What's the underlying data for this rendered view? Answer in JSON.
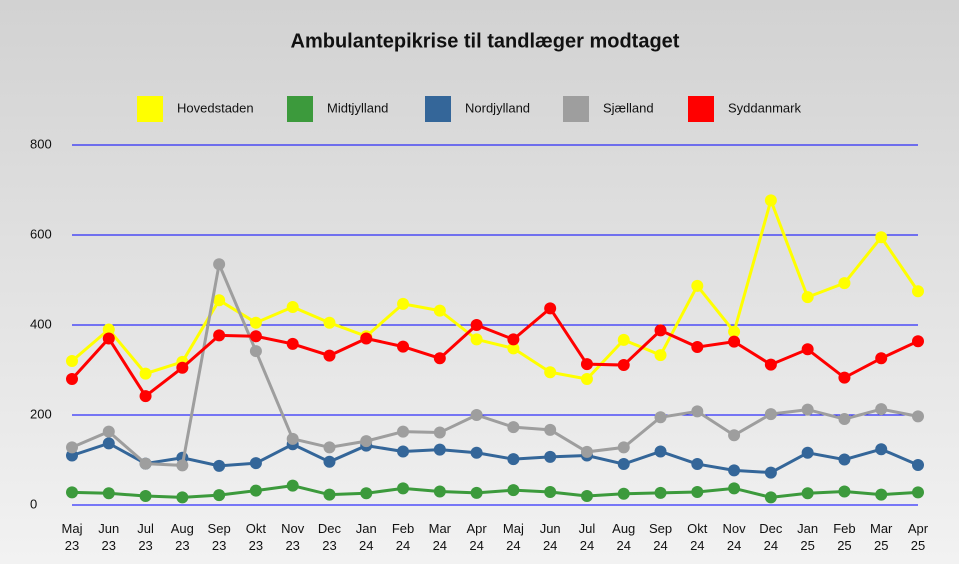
{
  "chart_data": {
    "type": "line",
    "title": "Ambulantepikrise til tandlæger modtaget",
    "categories": [
      "Maj\n23",
      "Jun\n23",
      "Jul\n23",
      "Aug\n23",
      "Sep\n23",
      "Okt\n23",
      "Nov\n23",
      "Dec\n23",
      "Jan\n24",
      "Feb\n24",
      "Mar\n24",
      "Apr\n24",
      "Maj\n24",
      "Jun\n24",
      "Jul\n24",
      "Aug\n24",
      "Sep\n24",
      "Okt\n24",
      "Nov\n24",
      "Dec\n24",
      "Jan\n25",
      "Feb\n25",
      "Mar\n25",
      "Apr\n25"
    ],
    "series": [
      {
        "name": "Hovedstaden",
        "color": "#ffff00",
        "values": [
          320,
          390,
          292,
          318,
          455,
          405,
          440,
          405,
          375,
          447,
          432,
          368,
          348,
          295,
          280,
          367,
          333,
          487,
          385,
          677,
          462,
          493,
          595,
          475
        ]
      },
      {
        "name": "Midtjylland",
        "color": "#3c9a3c",
        "values": [
          28,
          26,
          20,
          17,
          22,
          32,
          43,
          23,
          26,
          37,
          30,
          27,
          33,
          29,
          20,
          25,
          27,
          29,
          37,
          17,
          26,
          30,
          23,
          28
        ]
      },
      {
        "name": "Nordjylland",
        "color": "#346699",
        "values": [
          110,
          137,
          92,
          105,
          87,
          93,
          135,
          96,
          132,
          119,
          123,
          116,
          102,
          107,
          110,
          91,
          119,
          91,
          77,
          72,
          116,
          101,
          124,
          89
        ]
      },
      {
        "name": "Sjælland",
        "color": "#9e9e9e",
        "values": [
          128,
          163,
          92,
          88,
          535,
          342,
          147,
          128,
          142,
          163,
          161,
          200,
          173,
          167,
          118,
          128,
          195,
          208,
          155,
          202,
          212,
          191,
          213,
          197
        ]
      },
      {
        "name": "Syddanmark",
        "color": "#ff0000",
        "values": [
          280,
          370,
          242,
          305,
          377,
          375,
          358,
          332,
          370,
          352,
          326,
          400,
          368,
          437,
          313,
          311,
          388,
          351,
          363,
          312,
          346,
          283,
          326,
          364
        ]
      }
    ],
    "ylim": [
      0,
      800
    ],
    "yticks": [
      0,
      200,
      400,
      600,
      800
    ],
    "grid": true,
    "grid_color": "#0000ff",
    "legend": "top"
  }
}
